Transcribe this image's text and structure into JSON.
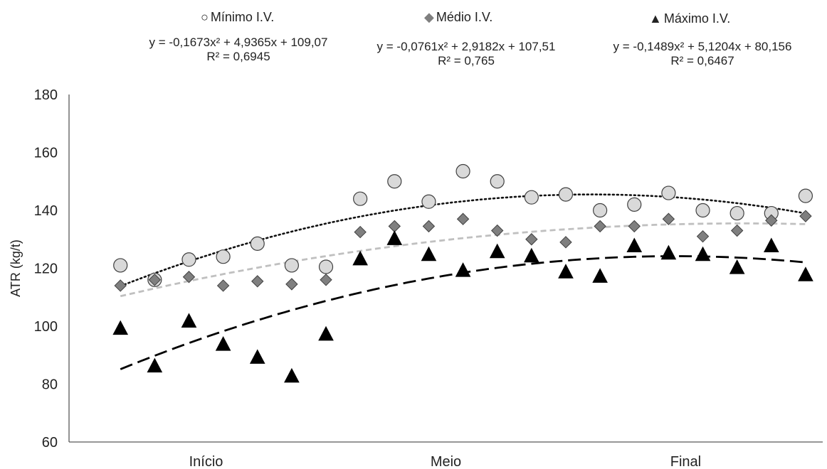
{
  "chart_data": {
    "type": "scatter",
    "ylabel": "ATR (kg/t)",
    "ylim": [
      60,
      180
    ],
    "yticks": [
      60,
      80,
      100,
      120,
      140,
      160,
      180
    ],
    "xlim": [
      0,
      21
    ],
    "categories": [
      "Início",
      "Meio",
      "Final"
    ],
    "category_positions": [
      3.5,
      10.5,
      17.5
    ],
    "grid": false,
    "legend_position": "top",
    "series": [
      {
        "name": "Mínimo I.V.",
        "marker": "circle",
        "color": "#d9d9d9",
        "stroke": "#404040",
        "trend_style": "dotted",
        "trend_color": "#111111",
        "equation": "y = -0,1673x² + 4,9365x + 109,07",
        "r2": "R² = 0,6945",
        "coef": [
          -0.1673,
          4.9365,
          109.07
        ],
        "x": [
          1,
          2,
          3,
          4,
          5,
          6,
          7,
          8,
          9,
          10,
          11,
          12,
          13,
          14,
          15,
          16,
          17,
          18,
          19,
          20,
          21
        ],
        "values": [
          121,
          116,
          123,
          124,
          128.5,
          121,
          120.5,
          144,
          150,
          143,
          153.5,
          150,
          144.5,
          145.5,
          140,
          142,
          146,
          140,
          139,
          139,
          145
        ]
      },
      {
        "name": "Médio I.V.",
        "marker": "diamond",
        "color": "#7f7f7f",
        "stroke": "#404040",
        "trend_style": "dashed-short",
        "trend_color": "#c0c0c0",
        "equation": "y = -0,0761x² + 2,9182x + 107,51",
        "r2": "R² = 0,765",
        "coef": [
          -0.0761,
          2.9182,
          107.51
        ],
        "x": [
          1,
          2,
          3,
          4,
          5,
          6,
          7,
          8,
          9,
          10,
          11,
          12,
          13,
          14,
          15,
          16,
          17,
          18,
          19,
          20,
          21
        ],
        "values": [
          114,
          116,
          117,
          114,
          115.5,
          114.5,
          116,
          132.5,
          134.5,
          134.5,
          137,
          133,
          130,
          129,
          134.5,
          134.5,
          137,
          131,
          133,
          136.5,
          138
        ]
      },
      {
        "name": "Máximo I.V.",
        "marker": "triangle",
        "color": "#000000",
        "stroke": "#000000",
        "trend_style": "dashed-long",
        "trend_color": "#000000",
        "equation": "y = -0,1489x² + 5,1204x + 80,156",
        "r2": "R² = 0,6467",
        "coef": [
          -0.1489,
          5.1204,
          80.156
        ],
        "x": [
          1,
          2,
          3,
          4,
          5,
          6,
          7,
          8,
          9,
          10,
          11,
          12,
          13,
          14,
          15,
          16,
          17,
          18,
          19,
          20,
          21
        ],
        "values": [
          99,
          86,
          101.5,
          93.5,
          89,
          82.5,
          97,
          123,
          130,
          124.5,
          119,
          125.5,
          124,
          118.5,
          117,
          127.5,
          125,
          124.5,
          120,
          127.5,
          117.5
        ]
      }
    ]
  }
}
